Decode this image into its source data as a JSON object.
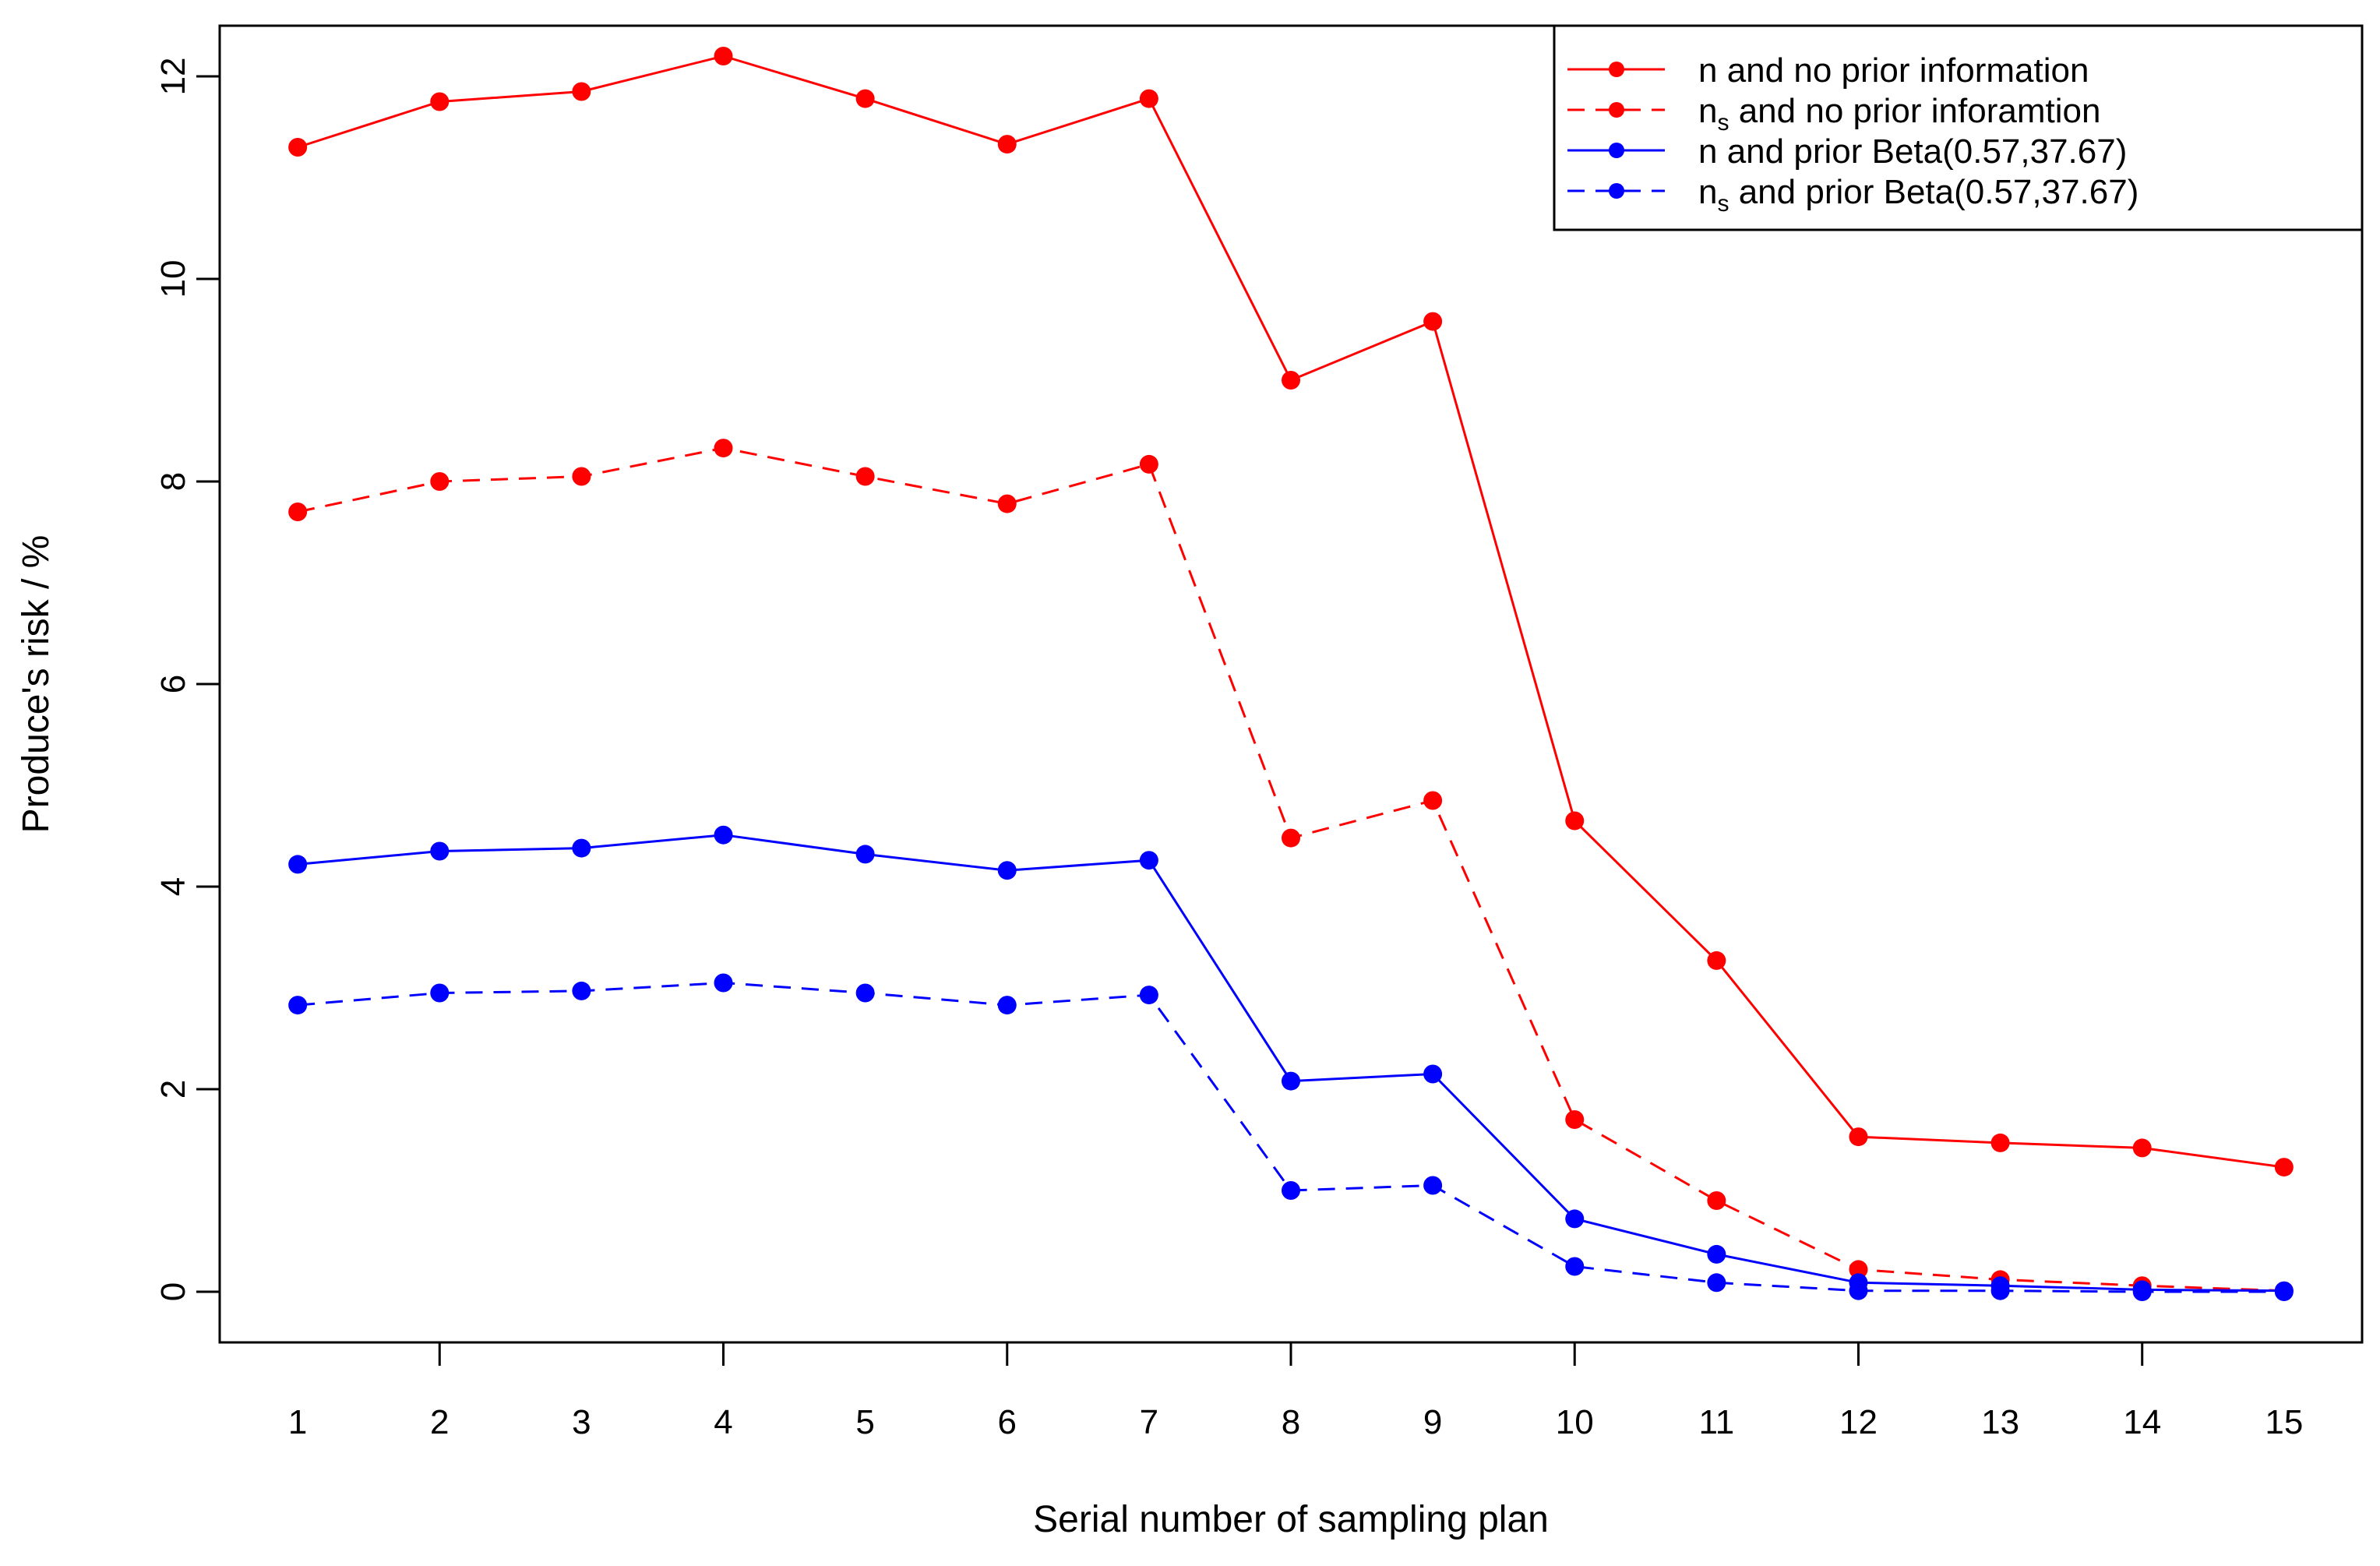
{
  "chart_data": {
    "type": "line",
    "title": "",
    "xlabel": "Serial number of sampling plan",
    "ylabel": "Produce's risk / %",
    "x": [
      1,
      2,
      3,
      4,
      5,
      6,
      7,
      8,
      9,
      10,
      11,
      12,
      13,
      14,
      15
    ],
    "x_tick_labels": [
      "1",
      "2",
      "3",
      "4",
      "5",
      "6",
      "7",
      "8",
      "9",
      "10",
      "11",
      "12",
      "13",
      "14",
      "15"
    ],
    "y_ticks": [
      0,
      2,
      4,
      6,
      8,
      10,
      12
    ],
    "y_tick_labels": [
      "0",
      "2",
      "4",
      "6",
      "8",
      "10",
      "12"
    ],
    "xlim": [
      0.45,
      15.55
    ],
    "ylim": [
      -0.5,
      12.5
    ],
    "grid": false,
    "legend_position": "top-right",
    "series": [
      {
        "name": "n and no prior information",
        "legend_main": "n",
        "legend_sub": "",
        "legend_rest": " and no prior information",
        "color": "#ff0000",
        "dashed": false,
        "values": [
          11.3,
          11.75,
          11.85,
          12.2,
          11.78,
          11.33,
          11.78,
          9.0,
          9.58,
          4.65,
          3.27,
          1.53,
          1.47,
          1.42,
          1.23
        ]
      },
      {
        "name": "n_s and no prior inforamtion",
        "legend_main": "n",
        "legend_sub": "s",
        "legend_rest": " and no prior inforamtion",
        "color": "#ff0000",
        "dashed": true,
        "values": [
          7.7,
          8.0,
          8.05,
          8.33,
          8.05,
          7.78,
          8.17,
          4.48,
          4.85,
          1.7,
          0.9,
          0.22,
          0.12,
          0.06,
          0.01
        ]
      },
      {
        "name": "n and prior Beta(0.57,37.67)",
        "legend_main": "n",
        "legend_sub": "",
        "legend_rest": " and prior Beta(0.57,37.67)",
        "color": "#0000ff",
        "dashed": false,
        "values": [
          4.22,
          4.35,
          4.38,
          4.51,
          4.32,
          4.16,
          4.26,
          2.08,
          2.15,
          0.72,
          0.37,
          0.09,
          0.06,
          0.02,
          0.01
        ]
      },
      {
        "name": "n_s and prior Beta(0.57,37.67)",
        "legend_main": "n",
        "legend_sub": "s",
        "legend_rest": " and prior Beta(0.57,37.67)",
        "color": "#0000ff",
        "dashed": true,
        "values": [
          2.83,
          2.95,
          2.97,
          3.05,
          2.95,
          2.83,
          2.93,
          1.0,
          1.05,
          0.25,
          0.09,
          0.01,
          0.01,
          0.0,
          0.0
        ]
      }
    ]
  }
}
